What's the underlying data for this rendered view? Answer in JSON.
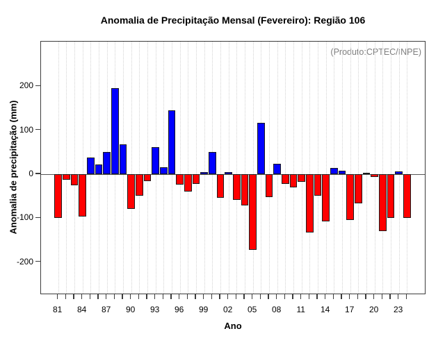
{
  "title": "Anomalia de Precipitação Mensal (Fevereiro): Região 106",
  "chart_data": {
    "type": "bar",
    "title": "Anomalia de Precipitação Mensal (Fevereiro): Região 106",
    "xlabel": "Ano",
    "ylabel": "Anomalia de precipitação (mm)",
    "annotation": "(Produto:CPTEC/INPE)",
    "annotation_position": "top-right",
    "annotation_color": "#7f7f7f",
    "x": [
      1981,
      1982,
      1983,
      1984,
      1985,
      1986,
      1987,
      1988,
      1989,
      1990,
      1991,
      1992,
      1993,
      1994,
      1995,
      1996,
      1997,
      1998,
      1999,
      2000,
      2001,
      2002,
      2003,
      2004,
      2005,
      2006,
      2007,
      2008,
      2009,
      2010,
      2011,
      2012,
      2013,
      2014,
      2015,
      2016,
      2017,
      2018,
      2019,
      2020,
      2021,
      2022,
      2023,
      2024
    ],
    "values": [
      -100,
      -13,
      -25,
      -96,
      38,
      22,
      50,
      196,
      68,
      -79,
      -49,
      -15,
      62,
      16,
      146,
      -23,
      -39,
      -22,
      5,
      51,
      -54,
      5,
      -58,
      -71,
      -172,
      117,
      -52,
      24,
      -22,
      -30,
      -17,
      -133,
      -49,
      -107,
      14,
      8,
      -104,
      -67,
      3,
      -6,
      -129,
      -100,
      7,
      -100
    ],
    "positive_color": "#0000ff",
    "negative_color": "#ff0000",
    "bar_border_color": "#1a1a1a",
    "y_ticks": [
      -200,
      -100,
      0,
      100,
      200
    ],
    "x_tick_labels": [
      "81",
      "84",
      "87",
      "90",
      "93",
      "96",
      "99",
      "02",
      "05",
      "08",
      "11",
      "14",
      "17",
      "20",
      "23"
    ],
    "x_tick_step": 3,
    "ylim": [
      -275,
      300
    ],
    "grid": "vertical-dotted",
    "grid_color": "#d2d2d2",
    "zero_line_color": "#555555",
    "frame_color": "#3c3c3c"
  }
}
